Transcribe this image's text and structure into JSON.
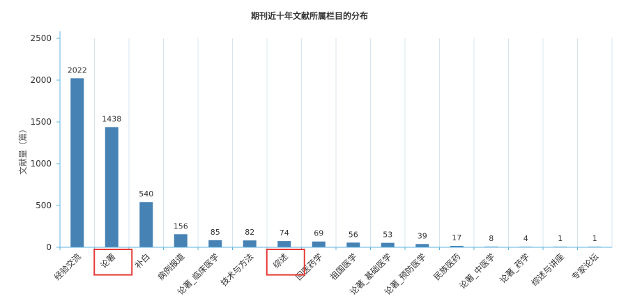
{
  "chart_data": {
    "type": "bar",
    "title": "期刊近十年文献所属栏目的分布",
    "xlabel": "",
    "ylabel": "文献量（篇）",
    "ylim": [
      0,
      2500
    ],
    "yticks": [
      0,
      500,
      1000,
      1500,
      2000,
      2500
    ],
    "categories": [
      "经验交流",
      "论著",
      "补白",
      "病例报道",
      "论著_临床医学",
      "技术与方法",
      "综述",
      "回医药学",
      "祖国医学",
      "论著_基础医学",
      "论著_预防医学",
      "民族医药",
      "论著_中医学",
      "论著_药学",
      "综述与讲座",
      "专家论坛"
    ],
    "values": [
      2022,
      1438,
      540,
      156,
      85,
      82,
      74,
      69,
      56,
      53,
      39,
      17,
      8,
      4,
      1,
      1
    ],
    "highlighted_categories": [
      "论著",
      "综述"
    ],
    "grid": {
      "vertical": true,
      "horizontal": false
    },
    "colors": {
      "bar": "#4682B4",
      "axis": "#5CB3E0",
      "grid": "#D8E4EE",
      "highlight_box": "#E53935"
    }
  }
}
